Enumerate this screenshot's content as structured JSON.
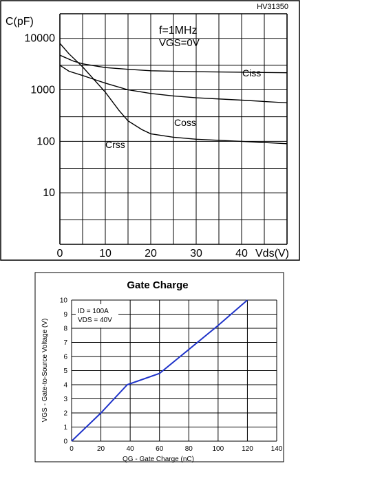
{
  "colors": {
    "ink": "#000000",
    "gate_line": "#1f33c9",
    "panel_border": "#000000"
  },
  "chart_data": [
    {
      "type": "line",
      "title": "",
      "corner_label": "HV31350",
      "annotation_lines": [
        "f=1MHz",
        "VGS=0V"
      ],
      "xlabel": "Vds(V)",
      "ylabel": "C(pF)",
      "xlim": [
        0,
        50
      ],
      "ylim": [
        1,
        30000
      ],
      "yscale": "log",
      "grid": true,
      "x_ticks": [
        "0",
        "10",
        "20",
        "30",
        "40"
      ],
      "y_ticks": [
        "10000",
        "1000",
        "100",
        "10"
      ],
      "series": [
        {
          "name": "Ciss",
          "points": [
            [
              0,
              4700
            ],
            [
              3,
              3600
            ],
            [
              5,
              3200
            ],
            [
              10,
              2700
            ],
            [
              15,
              2500
            ],
            [
              20,
              2350
            ],
            [
              30,
              2250
            ],
            [
              40,
              2200
            ],
            [
              50,
              2150
            ]
          ]
        },
        {
          "name": "Coss",
          "points": [
            [
              0,
              3000
            ],
            [
              2,
              2300
            ],
            [
              5,
              1900
            ],
            [
              10,
              1350
            ],
            [
              15,
              1000
            ],
            [
              20,
              850
            ],
            [
              25,
              760
            ],
            [
              30,
              700
            ],
            [
              40,
              630
            ],
            [
              50,
              560
            ]
          ]
        },
        {
          "name": "Crss",
          "points": [
            [
              0,
              8000
            ],
            [
              2,
              5000
            ],
            [
              5,
              2800
            ],
            [
              10,
              900
            ],
            [
              13,
              400
            ],
            [
              15,
              250
            ],
            [
              18,
              170
            ],
            [
              20,
              140
            ],
            [
              25,
              120
            ],
            [
              30,
              110
            ],
            [
              40,
              100
            ],
            [
              50,
              90
            ]
          ]
        }
      ]
    },
    {
      "type": "line",
      "title": "Gate Charge",
      "annotation_lines": [
        "ID = 100A",
        "VDS = 40V"
      ],
      "xlabel": "QG - Gate Charge (nC)",
      "ylabel": "VGS - Gate-to-Source Voltage (V)",
      "xlim": [
        0,
        140
      ],
      "ylim": [
        0,
        10
      ],
      "grid": true,
      "x_ticks": [
        "0",
        "20",
        "40",
        "60",
        "80",
        "100",
        "120",
        "140"
      ],
      "y_ticks": [
        "0",
        "1",
        "2",
        "3",
        "4",
        "5",
        "6",
        "7",
        "8",
        "9",
        "10"
      ],
      "series": [
        {
          "name": "",
          "points": [
            [
              0,
              0
            ],
            [
              20,
              2.0
            ],
            [
              38,
              4.0
            ],
            [
              60,
              4.8
            ],
            [
              80,
              6.5
            ],
            [
              100,
              8.2
            ],
            [
              120,
              10.0
            ]
          ]
        }
      ]
    }
  ]
}
